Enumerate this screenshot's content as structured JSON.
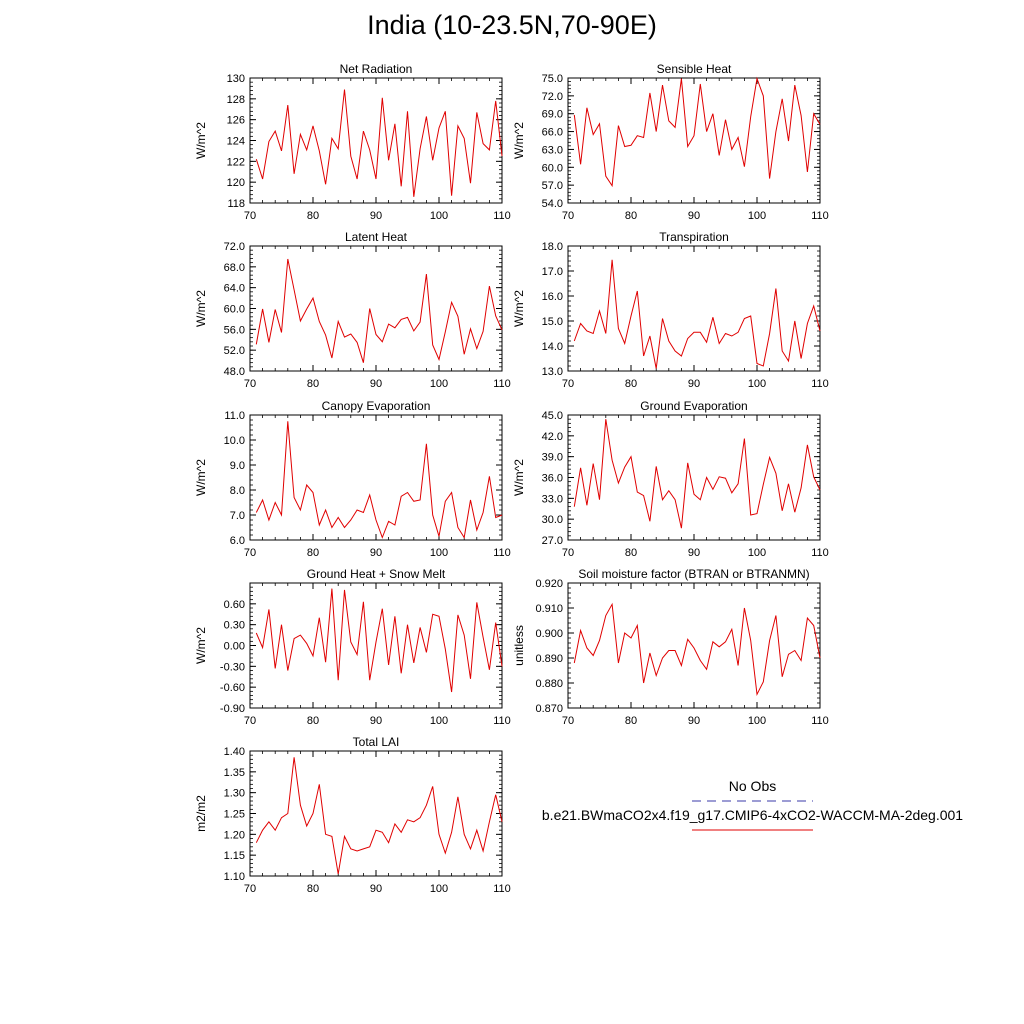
{
  "title": "India (10-23.5N,70-90E)",
  "legend": {
    "obs_label": "No Obs",
    "obs_color": "#3a3aa8",
    "model_label": "b.e21.BWmaCO2x4.f19_g17.CMIP6-4xCO2-WACCM-MA-2deg.001",
    "model_color": "#e00000"
  },
  "chart_data": [
    {
      "type": "line",
      "title": "Net Radiation",
      "ylabel": "W/m^2",
      "xlim": [
        70,
        110
      ],
      "ylim": [
        118,
        130
      ],
      "yticks": [
        "118",
        "120",
        "122",
        "124",
        "126",
        "128",
        "130"
      ],
      "xticks": [
        "70",
        "80",
        "90",
        "100",
        "110"
      ],
      "series": [
        {
          "name": "model",
          "values": [
            122.2,
            120.3,
            123.9,
            124.9,
            123,
            127.4,
            120.8,
            124.6,
            123.1,
            125.4,
            123,
            119.8,
            124.2,
            123.2,
            128.9,
            122.5,
            120.3,
            124.9,
            123.1,
            120.3,
            128.1,
            122.1,
            125.6,
            119.6,
            126.8,
            118.6,
            123.2,
            126.3,
            122.1,
            125.2,
            126.8,
            118.7,
            125.4,
            124.2,
            119.9,
            126.7,
            123.7,
            123.1,
            127.8,
            122.5
          ]
        }
      ]
    },
    {
      "type": "line",
      "title": "Sensible Heat",
      "ylabel": "W/m^2",
      "xlim": [
        70,
        110
      ],
      "ylim": [
        54,
        75
      ],
      "yticks": [
        "54.0",
        "57.0",
        "60.0",
        "63.0",
        "66.0",
        "69.0",
        "72.0",
        "75.0"
      ],
      "xticks": [
        "70",
        "80",
        "90",
        "100",
        "110"
      ],
      "series": [
        {
          "name": "model",
          "values": [
            68.8,
            60.5,
            70,
            65.5,
            67.3,
            58.5,
            56.9,
            67,
            63.5,
            63.7,
            65.3,
            65,
            72.5,
            66,
            73.8,
            67.8,
            66.7,
            74.9,
            63.5,
            65.3,
            74,
            66,
            69,
            62,
            68,
            63,
            65,
            60.1,
            68.5,
            74.9,
            72,
            58.1,
            66,
            71.5,
            64.4,
            73.8,
            68.7,
            59.2,
            69,
            67.2
          ]
        }
      ]
    },
    {
      "type": "line",
      "title": "Latent Heat",
      "ylabel": "W/m^2",
      "xlim": [
        70,
        110
      ],
      "ylim": [
        48,
        72
      ],
      "yticks": [
        "48.0",
        "52.0",
        "56.0",
        "60.0",
        "64.0",
        "68.0",
        "72.0"
      ],
      "xticks": [
        "70",
        "80",
        "90",
        "100",
        "110"
      ],
      "series": [
        {
          "name": "model",
          "values": [
            53.1,
            59.9,
            53.5,
            59.8,
            55.4,
            69.5,
            63.6,
            57.6,
            59.9,
            62,
            57.5,
            54.9,
            50.5,
            57.5,
            54.5,
            55.1,
            53.5,
            49.6,
            60,
            55,
            53.6,
            57,
            56.3,
            57.9,
            58.3,
            55.7,
            57.4,
            66.6,
            53,
            50.2,
            55.5,
            61.2,
            58.5,
            51.2,
            56.1,
            52.3,
            55.6,
            64.3,
            58.6,
            55.9
          ]
        }
      ]
    },
    {
      "type": "line",
      "title": "Transpiration",
      "ylabel": "W/m^2",
      "xlim": [
        70,
        110
      ],
      "ylim": [
        13,
        18
      ],
      "yticks": [
        "13.0",
        "14.0",
        "15.0",
        "16.0",
        "17.0",
        "18.0"
      ],
      "xticks": [
        "70",
        "80",
        "90",
        "100",
        "110"
      ],
      "series": [
        {
          "name": "model",
          "values": [
            14.2,
            14.9,
            14.6,
            14.5,
            15.4,
            14.5,
            17.45,
            14.7,
            14.1,
            15.2,
            16.2,
            13.6,
            14.4,
            13.1,
            15.1,
            14.2,
            13.8,
            13.6,
            14.3,
            14.55,
            14.55,
            14.15,
            15.15,
            14.1,
            14.5,
            14.4,
            14.55,
            15.1,
            15.2,
            13.3,
            13.2,
            14.5,
            16.3,
            13.8,
            13.4,
            15,
            13.5,
            14.9,
            15.6,
            14.6
          ]
        }
      ]
    },
    {
      "type": "line",
      "title": "Canopy Evaporation",
      "ylabel": "W/m^2",
      "xlim": [
        70,
        110
      ],
      "ylim": [
        6,
        11
      ],
      "yticks": [
        "6.0",
        "7.0",
        "8.0",
        "9.0",
        "10.0",
        "11.0"
      ],
      "xticks": [
        "70",
        "80",
        "90",
        "100",
        "110"
      ],
      "series": [
        {
          "name": "model",
          "values": [
            7.1,
            7.6,
            6.8,
            7.5,
            7,
            10.75,
            7.7,
            7.2,
            8.2,
            7.9,
            6.6,
            7.2,
            6.5,
            6.9,
            6.5,
            6.8,
            7.2,
            7.1,
            7.8,
            6.8,
            6.1,
            6.75,
            6.6,
            7.75,
            7.9,
            7.55,
            7.6,
            9.85,
            7,
            6.15,
            7.55,
            7.9,
            6.5,
            6.1,
            7.6,
            6.4,
            7.1,
            8.55,
            6.9,
            7
          ]
        }
      ]
    },
    {
      "type": "line",
      "title": "Ground Evaporation",
      "ylabel": "W/m^2",
      "xlim": [
        70,
        110
      ],
      "ylim": [
        27,
        45
      ],
      "yticks": [
        "27.0",
        "30.0",
        "33.0",
        "36.0",
        "39.0",
        "42.0",
        "45.0"
      ],
      "xticks": [
        "70",
        "80",
        "90",
        "100",
        "110"
      ],
      "series": [
        {
          "name": "model",
          "values": [
            31.8,
            37.4,
            32,
            38,
            32.8,
            44.4,
            38.5,
            35.2,
            37.5,
            39,
            33.9,
            33.4,
            29.7,
            37.6,
            32.8,
            34.1,
            32.8,
            28.7,
            38.1,
            33.6,
            32.8,
            36,
            34.3,
            36.1,
            35.9,
            33.8,
            35.1,
            41.6,
            30.6,
            30.8,
            35,
            38.9,
            36.6,
            31.2,
            35.1,
            31,
            34.5,
            40.7,
            36.1,
            34.2
          ]
        }
      ]
    },
    {
      "type": "line",
      "title": "Ground Heat + Snow Melt",
      "ylabel": "W/m^2",
      "xlim": [
        70,
        110
      ],
      "ylim": [
        -0.9,
        0.9
      ],
      "yticks": [
        "-0.90",
        "-0.60",
        "-0.30",
        "0.00",
        "0.30",
        "0.60"
      ],
      "xticks": [
        "70",
        "80",
        "90",
        "100",
        "110"
      ],
      "series": [
        {
          "name": "model",
          "values": [
            0.18,
            -0.03,
            0.52,
            -0.33,
            0.3,
            -0.36,
            0.1,
            0.15,
            0.03,
            -0.15,
            0.4,
            -0.24,
            0.82,
            -0.5,
            0.8,
            0.05,
            -0.13,
            0.63,
            -0.5,
            0.05,
            0.53,
            -0.28,
            0.42,
            -0.4,
            0.3,
            -0.25,
            0.26,
            -0.1,
            0.45,
            0.42,
            -0.05,
            -0.67,
            0.44,
            0.15,
            -0.48,
            0.62,
            0.12,
            -0.35,
            0.33,
            -0.3
          ]
        }
      ]
    },
    {
      "type": "line",
      "title": "Soil moisture factor (BTRAN or BTRANMN)",
      "ylabel": "unitless",
      "xlim": [
        70,
        110
      ],
      "ylim": [
        0.87,
        0.92
      ],
      "yticks": [
        "0.870",
        "0.880",
        "0.890",
        "0.900",
        "0.910",
        "0.920"
      ],
      "xticks": [
        "70",
        "80",
        "90",
        "100",
        "110"
      ],
      "series": [
        {
          "name": "model",
          "values": [
            0.888,
            0.901,
            0.894,
            0.891,
            0.897,
            0.907,
            0.9115,
            0.888,
            0.9,
            0.898,
            0.903,
            0.88,
            0.892,
            0.883,
            0.89,
            0.893,
            0.893,
            0.887,
            0.8975,
            0.894,
            0.889,
            0.8855,
            0.8965,
            0.8945,
            0.8965,
            0.9015,
            0.887,
            0.91,
            0.897,
            0.8755,
            0.8805,
            0.897,
            0.907,
            0.8825,
            0.8915,
            0.893,
            0.889,
            0.906,
            0.903,
            0.89
          ]
        }
      ]
    },
    {
      "type": "line",
      "title": "Total LAI",
      "ylabel": "m2/m2",
      "xlim": [
        70,
        110
      ],
      "ylim": [
        1.1,
        1.4
      ],
      "yticks": [
        "1.10",
        "1.15",
        "1.20",
        "1.25",
        "1.30",
        "1.35",
        "1.40"
      ],
      "xticks": [
        "70",
        "80",
        "90",
        "100",
        "110"
      ],
      "series": [
        {
          "name": "model",
          "values": [
            1.18,
            1.21,
            1.23,
            1.21,
            1.24,
            1.25,
            1.385,
            1.27,
            1.22,
            1.25,
            1.32,
            1.2,
            1.195,
            1.105,
            1.195,
            1.165,
            1.16,
            1.165,
            1.17,
            1.21,
            1.205,
            1.18,
            1.225,
            1.205,
            1.235,
            1.23,
            1.24,
            1.27,
            1.315,
            1.2,
            1.155,
            1.205,
            1.29,
            1.2,
            1.165,
            1.21,
            1.16,
            1.23,
            1.295,
            1.23
          ]
        }
      ]
    }
  ]
}
